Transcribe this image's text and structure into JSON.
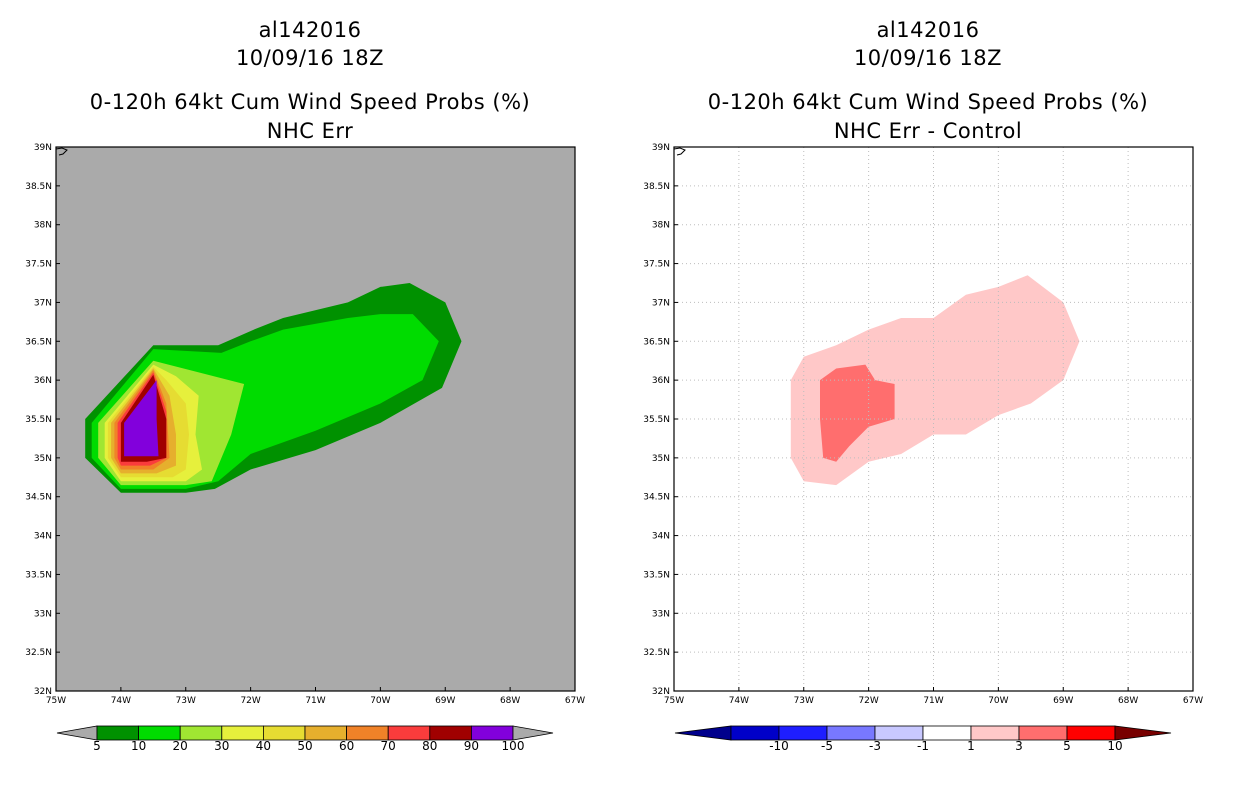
{
  "chart_data": [
    {
      "type": "heatmap",
      "storm_id": "al142016",
      "datetime": "10/09/16 18Z",
      "title": "0-120h 64kt Cum Wind Speed Probs (%)",
      "subtitle": "NHC Err",
      "xlim": [
        -75,
        -67
      ],
      "ylim": [
        32,
        39
      ],
      "x_tick_labels": [
        "75W",
        "74W",
        "73W",
        "72W",
        "71W",
        "70W",
        "69W",
        "68W",
        "67W"
      ],
      "y_tick_labels": [
        "32N",
        "32.5N",
        "33N",
        "33.5N",
        "34N",
        "34.5N",
        "35N",
        "35.5N",
        "36N",
        "36.5N",
        "37N",
        "37.5N",
        "38N",
        "38.5N",
        "39N"
      ],
      "grid": false,
      "background_color": "#aaaaaa",
      "colorbar": {
        "labels": [
          "5",
          "10",
          "20",
          "30",
          "40",
          "50",
          "60",
          "70",
          "80",
          "90",
          "100"
        ],
        "colors": [
          "#009100",
          "#00dc00",
          "#a0e632",
          "#e6f03c",
          "#e6dc32",
          "#e6af2d",
          "#f08228",
          "#fa3c3c",
          "#a00000",
          "#8200dc"
        ],
        "end_color": "#aaaaaa"
      },
      "contours": [
        {
          "level": 5,
          "color": "#009100",
          "polygon": [
            [
              -74.55,
              35.5
            ],
            [
              -73.5,
              36.45
            ],
            [
              -72.5,
              36.45
            ],
            [
              -71.95,
              36.65
            ],
            [
              -71.5,
              36.8
            ],
            [
              -70.5,
              37.0
            ],
            [
              -70.0,
              37.2
            ],
            [
              -69.55,
              37.25
            ],
            [
              -69.0,
              37.0
            ],
            [
              -68.75,
              36.5
            ],
            [
              -69.05,
              35.9
            ],
            [
              -70.0,
              35.45
            ],
            [
              -71.0,
              35.1
            ],
            [
              -72.0,
              34.85
            ],
            [
              -72.55,
              34.6
            ],
            [
              -73.0,
              34.55
            ],
            [
              -74.0,
              34.55
            ],
            [
              -74.55,
              35.0
            ]
          ]
        },
        {
          "level": 10,
          "color": "#00dc00",
          "polygon": [
            [
              -74.45,
              35.45
            ],
            [
              -73.5,
              36.4
            ],
            [
              -72.45,
              36.35
            ],
            [
              -72.0,
              36.5
            ],
            [
              -71.5,
              36.65
            ],
            [
              -70.5,
              36.8
            ],
            [
              -70.0,
              36.85
            ],
            [
              -69.5,
              36.85
            ],
            [
              -69.1,
              36.5
            ],
            [
              -69.35,
              36.0
            ],
            [
              -70.0,
              35.7
            ],
            [
              -71.0,
              35.35
            ],
            [
              -72.0,
              35.05
            ],
            [
              -72.5,
              34.7
            ],
            [
              -73.0,
              34.6
            ],
            [
              -74.0,
              34.6
            ],
            [
              -74.45,
              35.0
            ]
          ]
        },
        {
          "level": 20,
          "color": "#a0e632",
          "polygon": [
            [
              -74.35,
              35.45
            ],
            [
              -73.5,
              36.25
            ],
            [
              -72.8,
              36.1
            ],
            [
              -72.1,
              35.95
            ],
            [
              -72.3,
              35.3
            ],
            [
              -72.6,
              34.7
            ],
            [
              -73.0,
              34.65
            ],
            [
              -74.0,
              34.65
            ],
            [
              -74.35,
              35.0
            ]
          ]
        },
        {
          "level": 30,
          "color": "#e6f03c",
          "polygon": [
            [
              -74.25,
              35.45
            ],
            [
              -73.5,
              36.2
            ],
            [
              -73.15,
              36.05
            ],
            [
              -72.8,
              35.8
            ],
            [
              -72.85,
              35.3
            ],
            [
              -72.75,
              34.85
            ],
            [
              -73.0,
              34.7
            ],
            [
              -74.0,
              34.7
            ],
            [
              -74.25,
              35.0
            ]
          ]
        },
        {
          "level": 40,
          "color": "#e6dc32",
          "polygon": [
            [
              -74.2,
              35.45
            ],
            [
              -73.5,
              36.17
            ],
            [
              -73.3,
              36.0
            ],
            [
              -73.0,
              35.7
            ],
            [
              -72.95,
              35.3
            ],
            [
              -73.0,
              34.85
            ],
            [
              -73.2,
              34.75
            ],
            [
              -74.0,
              34.75
            ],
            [
              -74.2,
              35.0
            ]
          ]
        },
        {
          "level": 50,
          "color": "#e6af2d",
          "polygon": [
            [
              -74.15,
              35.45
            ],
            [
              -73.5,
              36.15
            ],
            [
              -73.25,
              35.8
            ],
            [
              -73.15,
              35.3
            ],
            [
              -73.15,
              34.9
            ],
            [
              -73.45,
              34.8
            ],
            [
              -74.0,
              34.8
            ],
            [
              -74.15,
              35.0
            ]
          ]
        },
        {
          "level": 60,
          "color": "#f08228",
          "polygon": [
            [
              -74.1,
              35.45
            ],
            [
              -73.5,
              36.13
            ],
            [
              -73.3,
              35.7
            ],
            [
              -73.25,
              35.0
            ],
            [
              -73.5,
              34.85
            ],
            [
              -74.0,
              34.85
            ],
            [
              -74.1,
              35.0
            ]
          ]
        },
        {
          "level": 70,
          "color": "#fa3c3c",
          "polygon": [
            [
              -74.05,
              35.45
            ],
            [
              -73.5,
              36.1
            ],
            [
              -73.3,
              35.6
            ],
            [
              -73.3,
              35.0
            ],
            [
              -73.55,
              34.9
            ],
            [
              -74.0,
              34.9
            ],
            [
              -74.05,
              35.0
            ]
          ]
        },
        {
          "level": 80,
          "color": "#a00000",
          "polygon": [
            [
              -74.0,
              35.45
            ],
            [
              -73.5,
              36.07
            ],
            [
              -73.3,
              35.5
            ],
            [
              -73.3,
              35.0
            ],
            [
              -73.6,
              34.95
            ],
            [
              -74.0,
              34.95
            ]
          ]
        },
        {
          "level": 90,
          "color": "#8200dc",
          "polygon": [
            [
              -73.95,
              35.45
            ],
            [
              -73.45,
              36.0
            ],
            [
              -73.45,
              35.5
            ],
            [
              -73.42,
              35.02
            ],
            [
              -73.95,
              35.02
            ]
          ]
        }
      ]
    },
    {
      "type": "heatmap",
      "storm_id": "al142016",
      "datetime": "10/09/16 18Z",
      "title": "0-120h 64kt Cum Wind Speed Probs (%)",
      "subtitle": "NHC Err - Control",
      "xlim": [
        -75,
        -67
      ],
      "ylim": [
        32,
        39
      ],
      "x_tick_labels": [
        "75W",
        "74W",
        "73W",
        "72W",
        "71W",
        "70W",
        "69W",
        "68W",
        "67W"
      ],
      "y_tick_labels": [
        "32N",
        "32.5N",
        "33N",
        "33.5N",
        "34N",
        "34.5N",
        "35N",
        "35.5N",
        "36N",
        "36.5N",
        "37N",
        "37.5N",
        "38N",
        "38.5N",
        "39N"
      ],
      "grid": true,
      "background_color": "#ffffff",
      "colorbar": {
        "labels": [
          "-10",
          "-5",
          "-3",
          "-1",
          "1",
          "3",
          "5",
          "10"
        ],
        "colors": [
          "#0000c8",
          "#1e1eff",
          "#7878ff",
          "#c8c8ff",
          "#ffffff",
          "#ffc8c8",
          "#ff6e6e",
          "#ff0000"
        ],
        "start_color": "#00008c",
        "end_color": "#780000"
      },
      "contours": [
        {
          "level": 1,
          "color": "#ffc8c8",
          "polygon": [
            [
              -73.2,
              36.0
            ],
            [
              -73.0,
              36.3
            ],
            [
              -72.5,
              36.45
            ],
            [
              -72.0,
              36.65
            ],
            [
              -71.5,
              36.8
            ],
            [
              -71.0,
              36.8
            ],
            [
              -70.5,
              37.1
            ],
            [
              -70.0,
              37.2
            ],
            [
              -69.55,
              37.35
            ],
            [
              -69.0,
              37.0
            ],
            [
              -68.75,
              36.5
            ],
            [
              -69.0,
              36.0
            ],
            [
              -69.5,
              35.7
            ],
            [
              -70.0,
              35.55
            ],
            [
              -70.5,
              35.3
            ],
            [
              -71.0,
              35.3
            ],
            [
              -71.5,
              35.05
            ],
            [
              -72.0,
              34.95
            ],
            [
              -72.5,
              34.65
            ],
            [
              -73.0,
              34.7
            ],
            [
              -73.2,
              35.0
            ]
          ]
        },
        {
          "level": 3,
          "color": "#ff6e6e",
          "polygon": [
            [
              -72.75,
              36.0
            ],
            [
              -72.5,
              36.15
            ],
            [
              -72.05,
              36.2
            ],
            [
              -71.9,
              36.0
            ],
            [
              -71.6,
              35.95
            ],
            [
              -71.6,
              35.5
            ],
            [
              -72.0,
              35.4
            ],
            [
              -72.3,
              35.15
            ],
            [
              -72.5,
              34.95
            ],
            [
              -72.7,
              35.0
            ],
            [
              -72.75,
              35.5
            ]
          ]
        }
      ]
    }
  ]
}
